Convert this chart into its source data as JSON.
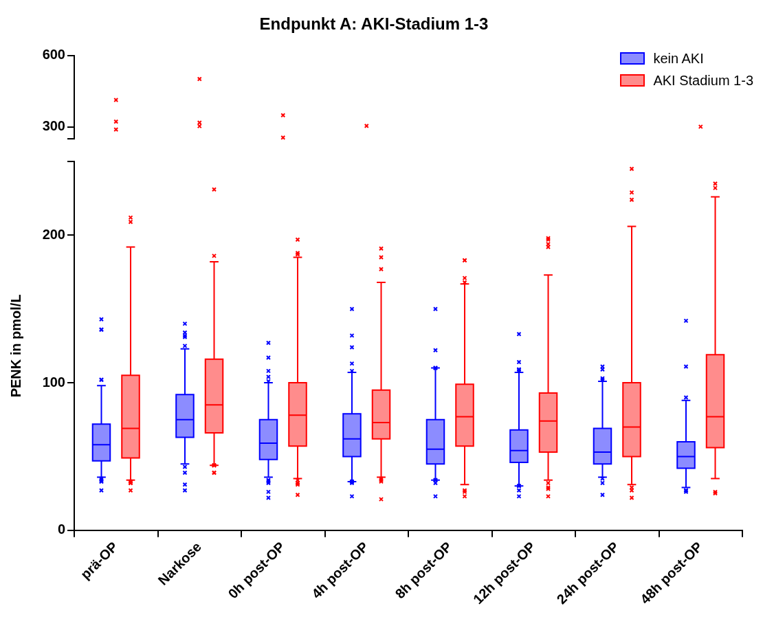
{
  "chart_data": [
    {
      "type": "scatter",
      "title": "Endpunkt A: AKI-Stadium 1-3",
      "categories": [
        "prä-OP",
        "Narkose",
        "0h post-OP",
        "4h post-OP",
        "8h post-OP",
        "12h post-OP",
        "24h post-OP",
        "48h post-OP"
      ],
      "ylim": [
        250,
        600
      ],
      "yticks": [
        {
          "value": 250,
          "label": null
        },
        300,
        600
      ],
      "tick_labels": "y",
      "marker": "cross",
      "series": [
        {
          "color": "#ff0000",
          "x": [
            "prä-OP",
            "prä-OP",
            "prä-OP",
            "Narkose",
            "Narkose",
            "Narkose",
            "0h post-OP",
            "0h post-OP",
            "4h post-OP",
            "48h post-OP"
          ],
          "values": [
            413,
            322,
            289,
            501,
            318,
            303,
            349,
            255,
            304,
            301
          ]
        }
      ]
    },
    {
      "type": "box",
      "ylabel": "PENK in pmol/L",
      "categories": [
        "prä-OP",
        "Narkose",
        "0h post-OP",
        "4h post-OP",
        "8h post-OP",
        "12h post-OP",
        "24h post-OP",
        "48h post-OP"
      ],
      "ylim": [
        0,
        250
      ],
      "yticks": [
        0,
        100,
        200,
        {
          "value": 250,
          "label": null
        }
      ],
      "legend": "top right",
      "marker": "cross",
      "series": [
        {
          "name": "kein AKI",
          "color": "#0000ff",
          "boxes": [
            {
              "low": 36,
              "q1": 47,
              "median": 58,
              "q3": 72,
              "high": 98,
              "outliers": [
                143,
                136,
                136,
                102,
                102,
                35,
                34,
                33,
                33,
                27
              ]
            },
            {
              "low": 45,
              "q1": 63,
              "median": 75,
              "q3": 92,
              "high": 123,
              "outliers": [
                140,
                134,
                132,
                131,
                125,
                43,
                39,
                31,
                27
              ]
            },
            {
              "low": 36,
              "q1": 48,
              "median": 59,
              "q3": 75,
              "high": 100,
              "outliers": [
                127,
                117,
                108,
                104,
                101,
                34,
                33,
                32,
                26,
                22
              ]
            },
            {
              "low": 33,
              "q1": 50,
              "median": 62,
              "q3": 79,
              "high": 107,
              "outliers": [
                150,
                132,
                124,
                113,
                108,
                33,
                33,
                33,
                32,
                23
              ]
            },
            {
              "low": 34,
              "q1": 45,
              "median": 55,
              "q3": 75,
              "high": 110,
              "outliers": [
                150,
                122,
                110,
                110,
                34,
                34,
                32,
                23
              ]
            },
            {
              "low": 30,
              "q1": 46,
              "median": 54,
              "q3": 68,
              "high": 107,
              "outliers": [
                133,
                114,
                109,
                109,
                108,
                30,
                30,
                27,
                23
              ]
            },
            {
              "low": 36,
              "q1": 45,
              "median": 53,
              "q3": 69,
              "high": 101,
              "outliers": [
                111,
                109,
                103,
                102,
                35,
                32,
                24
              ]
            },
            {
              "low": 29,
              "q1": 42,
              "median": 50,
              "q3": 60,
              "high": 88,
              "outliers": [
                142,
                111,
                90,
                27,
                27,
                26
              ]
            }
          ]
        },
        {
          "name": "AKI Stadium 1-3",
          "color": "#ff0000",
          "boxes": [
            {
              "low": 34,
              "q1": 49,
              "median": 69,
              "q3": 105,
              "high": 192,
              "outliers": [
                212,
                209,
                33,
                33,
                32,
                32,
                27
              ]
            },
            {
              "low": 44,
              "q1": 66,
              "median": 85,
              "q3": 116,
              "high": 182,
              "outliers": [
                231,
                186,
                44,
                44,
                44,
                39,
                39
              ]
            },
            {
              "low": 35,
              "q1": 57,
              "median": 78,
              "q3": 100,
              "high": 185,
              "outliers": [
                197,
                188,
                187,
                34,
                32,
                32,
                31,
                24
              ]
            },
            {
              "low": 36,
              "q1": 62,
              "median": 73,
              "q3": 95,
              "high": 168,
              "outliers": [
                191,
                185,
                177,
                35,
                34,
                33,
                21
              ]
            },
            {
              "low": 31,
              "q1": 57,
              "median": 77,
              "q3": 99,
              "high": 167,
              "outliers": [
                183,
                183,
                171,
                168,
                27,
                26,
                23
              ]
            },
            {
              "low": 34,
              "q1": 53,
              "median": 74,
              "q3": 93,
              "high": 173,
              "outliers": [
                198,
                197,
                194,
                192,
                32,
                29,
                28,
                23
              ]
            },
            {
              "low": 31,
              "q1": 50,
              "median": 70,
              "q3": 100,
              "high": 206,
              "outliers": [
                245,
                229,
                224,
                29,
                27,
                22
              ]
            },
            {
              "low": 35,
              "q1": 56,
              "median": 77,
              "q3": 119,
              "high": 226,
              "outliers": [
                235,
                232,
                26,
                25
              ]
            }
          ]
        }
      ]
    }
  ]
}
